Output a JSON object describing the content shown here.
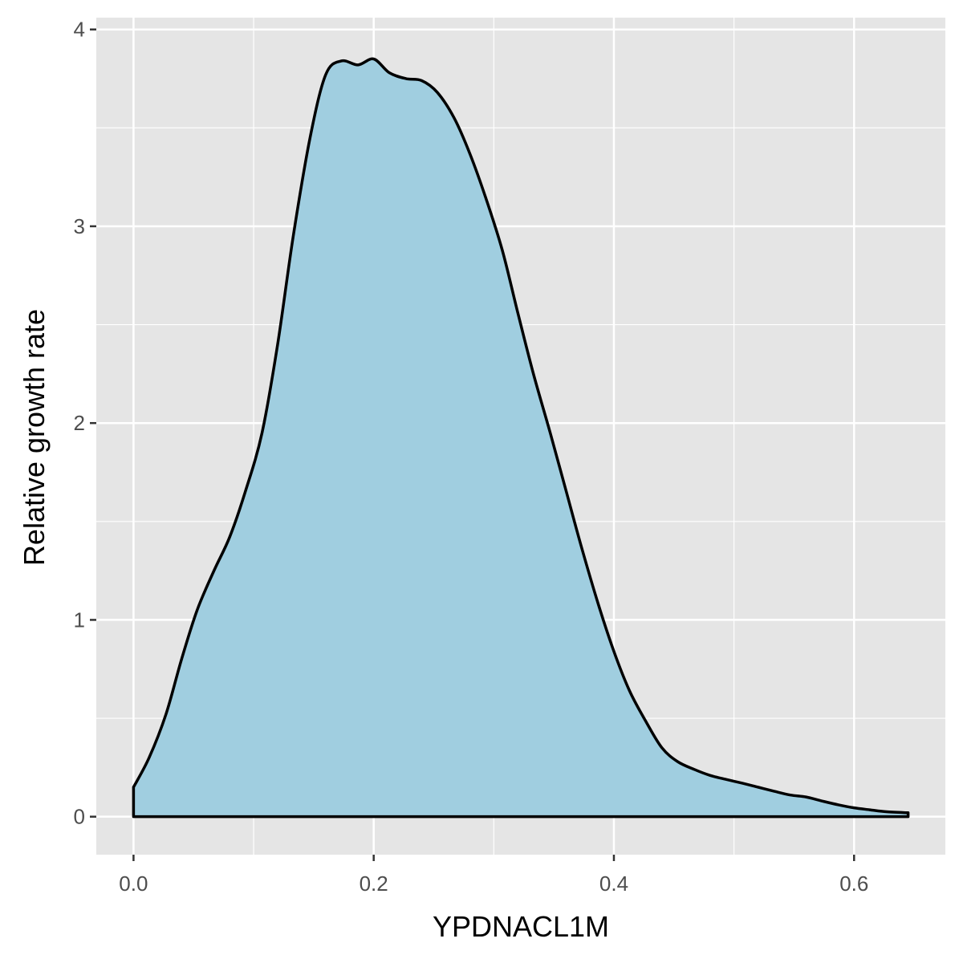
{
  "chart_data": {
    "type": "area",
    "title": "",
    "xlabel": "YPDNACL1M",
    "ylabel": "Relative growth rate",
    "xlim": [
      -0.031,
      0.676
    ],
    "ylim": [
      -0.193,
      4.06
    ],
    "x_ticks": [
      0.0,
      0.2,
      0.4,
      0.6
    ],
    "x_tick_labels": [
      "0.0",
      "0.2",
      "0.4",
      "0.6"
    ],
    "y_ticks": [
      0,
      1,
      2,
      3,
      4
    ],
    "y_tick_labels": [
      "0",
      "1",
      "2",
      "3",
      "4"
    ],
    "grid": true,
    "legend": "none",
    "colors": {
      "fill": "#a0cee0",
      "outline": "#000000",
      "panel": "#e5e5e5",
      "grid": "#ffffff"
    },
    "series": [
      {
        "x": [
          0.0,
          0.013,
          0.027,
          0.04,
          0.053,
          0.067,
          0.08,
          0.093,
          0.107,
          0.12,
          0.133,
          0.147,
          0.16,
          0.173,
          0.187,
          0.2,
          0.213,
          0.227,
          0.24,
          0.253,
          0.267,
          0.28,
          0.293,
          0.307,
          0.32,
          0.333,
          0.347,
          0.36,
          0.373,
          0.387,
          0.4,
          0.413,
          0.427,
          0.44,
          0.453,
          0.467,
          0.48,
          0.493,
          0.507,
          0.52,
          0.533,
          0.547,
          0.56,
          0.573,
          0.587,
          0.6,
          0.613,
          0.627,
          0.645
        ],
        "y": [
          0.15,
          0.3,
          0.52,
          0.8,
          1.05,
          1.25,
          1.42,
          1.65,
          1.95,
          2.4,
          2.95,
          3.45,
          3.77,
          3.84,
          3.82,
          3.85,
          3.78,
          3.75,
          3.74,
          3.68,
          3.55,
          3.37,
          3.15,
          2.88,
          2.56,
          2.25,
          1.95,
          1.66,
          1.37,
          1.08,
          0.84,
          0.64,
          0.48,
          0.35,
          0.28,
          0.24,
          0.21,
          0.19,
          0.17,
          0.15,
          0.13,
          0.11,
          0.1,
          0.08,
          0.06,
          0.045,
          0.035,
          0.025,
          0.02
        ]
      }
    ]
  }
}
